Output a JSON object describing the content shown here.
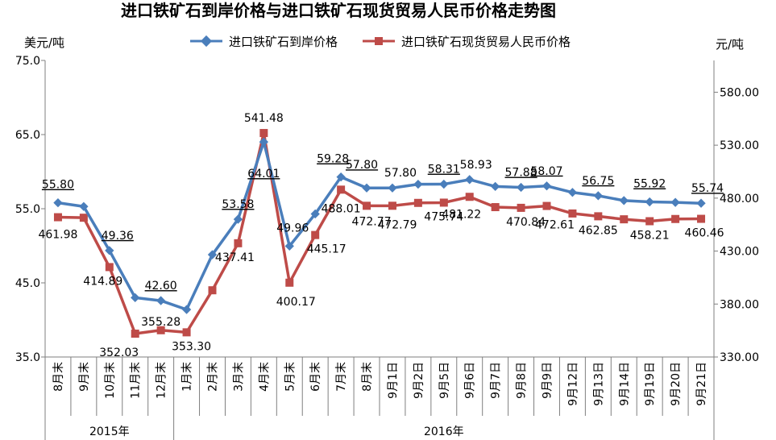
{
  "chart_data": {
    "type": "line",
    "title": "进口铁矿石到岸价格与进口铁矿石现货贸易人民币价格走势图",
    "left_axis_unit": "美元/吨",
    "right_axis_unit": "元/吨",
    "left_ylim": [
      35.0,
      75.0
    ],
    "left_ticks": [
      "35.0",
      "45.0",
      "55.0",
      "65.0",
      "75.0"
    ],
    "right_ylim": [
      330.0,
      610.0
    ],
    "right_ticks": [
      "330.00",
      "380.00",
      "430.00",
      "480.00",
      "530.00",
      "580.00"
    ],
    "categories": [
      "8月末",
      "9月末",
      "10月末",
      "11月末",
      "12月末",
      "1月末",
      "2月末",
      "3月末",
      "4月末",
      "5月末",
      "6月末",
      "7月末",
      "8月末",
      "9月1日",
      "9月2日",
      "9月5日",
      "9月6日",
      "9月7日",
      "9月8日",
      "9月9日",
      "9月12日",
      "9月13日",
      "9月14日",
      "9月19日",
      "9月20日",
      "9月21日"
    ],
    "year_groups": [
      {
        "label": "2015年",
        "count": 5
      },
      {
        "label": "2016年",
        "count": 21
      }
    ],
    "legend_position": "top",
    "grid": "none",
    "series": [
      {
        "name": "进口铁矿石到岸价格",
        "axis": "left",
        "color": "#4a7ebb",
        "marker": "diamond",
        "values": [
          55.8,
          55.3,
          49.36,
          43.0,
          42.6,
          41.4,
          48.8,
          53.58,
          64.01,
          49.96,
          54.3,
          59.28,
          57.8,
          57.8,
          58.3,
          58.31,
          58.93,
          58.0,
          57.88,
          58.07,
          57.2,
          56.75,
          56.1,
          55.92,
          55.85,
          55.74
        ],
        "labels": [
          "55.80",
          "",
          "49.36",
          "",
          "42.60",
          "",
          "",
          "53.58",
          "64.01",
          "49.96",
          "",
          "59.28",
          "57.80",
          "57.80",
          "",
          "58.31",
          "58.93",
          "",
          "57.88",
          "58.07",
          "",
          "56.75",
          "",
          "55.92",
          "",
          "55.74"
        ]
      },
      {
        "name": "进口铁矿石现货贸易人民币价格",
        "axis": "right",
        "color": "#be4b48",
        "marker": "square",
        "values": [
          461.98,
          461.5,
          414.89,
          352.03,
          355.28,
          353.3,
          393.0,
          437.41,
          541.48,
          400.17,
          445.17,
          488.01,
          472.77,
          472.79,
          475.5,
          475.74,
          481.22,
          471.5,
          470.84,
          472.61,
          465.5,
          462.85,
          460.0,
          458.21,
          460.3,
          460.46
        ],
        "labels": [
          "461.98",
          "",
          "414.89",
          "352.03",
          "355.28",
          "353.30",
          "",
          "437.41",
          "541.48",
          "400.17",
          "445.17",
          "488.01",
          "472.77",
          "472.79",
          "",
          "475.74",
          "481.22",
          "",
          "470.84",
          "472.61",
          "",
          "462.85",
          "",
          "458.21",
          "",
          "460.46"
        ]
      }
    ]
  }
}
